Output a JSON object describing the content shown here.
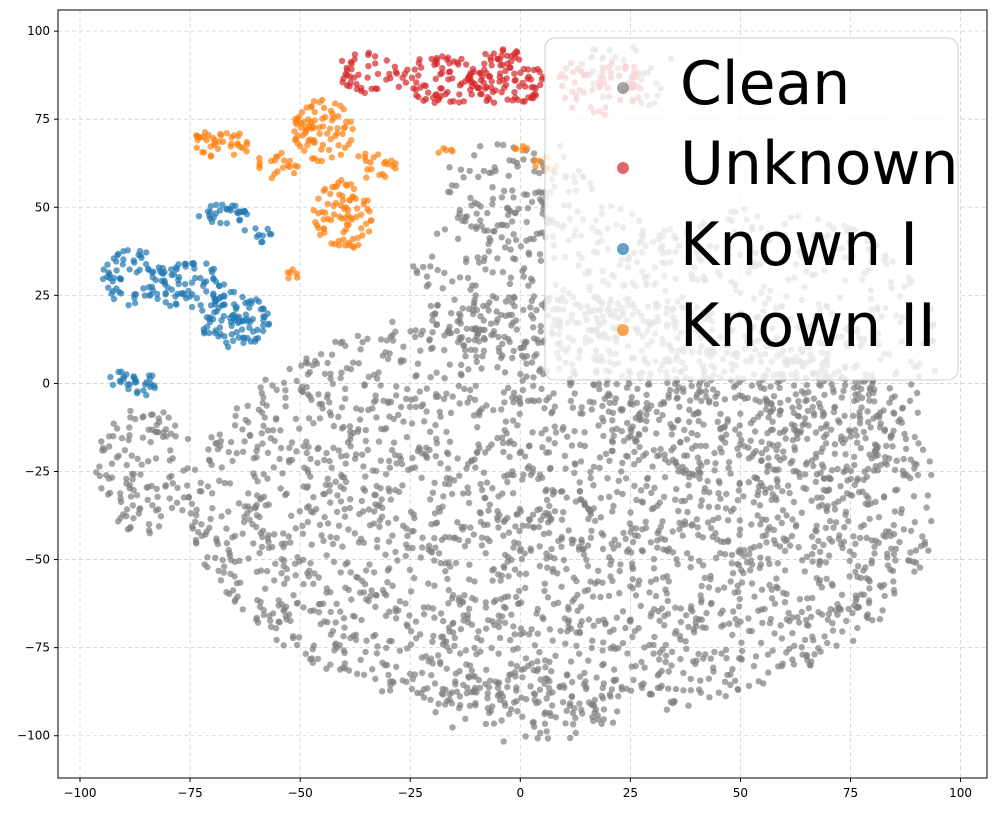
{
  "chart_data": {
    "type": "scatter",
    "title": "",
    "xlabel": "",
    "ylabel": "",
    "xlim": [
      -105,
      106
    ],
    "ylim": [
      -112,
      106
    ],
    "xticks": [
      -100,
      -75,
      -50,
      -25,
      0,
      25,
      50,
      75,
      100
    ],
    "yticks": [
      -100,
      -75,
      -50,
      -25,
      0,
      25,
      50,
      75,
      100
    ],
    "xtick_labels": [
      "−100",
      "−75",
      "−50",
      "−25",
      "0",
      "25",
      "50",
      "75",
      "100"
    ],
    "ytick_labels": [
      "−100",
      "−75",
      "−50",
      "−25",
      "0",
      "25",
      "50",
      "75",
      "100"
    ],
    "grid": true,
    "legend_position": "top-right",
    "series": [
      {
        "name": "Clean",
        "color": "#7f7f7f",
        "regions": [
          {
            "cx": 10,
            "cy": -35,
            "rx": 85,
            "ry": 60,
            "n": 2600
          },
          {
            "cx": 55,
            "cy": 10,
            "rx": 40,
            "ry": 40,
            "n": 500
          },
          {
            "cx": 5,
            "cy": 30,
            "rx": 30,
            "ry": 25,
            "n": 250
          },
          {
            "cx": 0,
            "cy": 55,
            "rx": 18,
            "ry": 15,
            "n": 90
          },
          {
            "cx": 25,
            "cy": 90,
            "rx": 12,
            "ry": 12,
            "n": 40
          },
          {
            "cx": 0,
            "cy": -90,
            "rx": 25,
            "ry": 12,
            "n": 100
          },
          {
            "cx": -85,
            "cy": -25,
            "rx": 12,
            "ry": 18,
            "n": 120
          }
        ]
      },
      {
        "name": "Unknown",
        "color": "#d62728",
        "regions": [
          {
            "cx": -35,
            "cy": 88,
            "rx": 7,
            "ry": 6,
            "n": 40
          },
          {
            "cx": -18,
            "cy": 86,
            "rx": 10,
            "ry": 7,
            "n": 80
          },
          {
            "cx": -3,
            "cy": 87,
            "rx": 9,
            "ry": 8,
            "n": 90
          },
          {
            "cx": 18,
            "cy": 85,
            "rx": 10,
            "ry": 9,
            "n": 60
          }
        ]
      },
      {
        "name": "Known I",
        "color": "#1f77b4",
        "regions": [
          {
            "cx": -88,
            "cy": 30,
            "rx": 7,
            "ry": 8,
            "n": 60
          },
          {
            "cx": -75,
            "cy": 28,
            "rx": 9,
            "ry": 7,
            "n": 70
          },
          {
            "cx": -65,
            "cy": 18,
            "rx": 8,
            "ry": 8,
            "n": 90
          },
          {
            "cx": -88,
            "cy": 0,
            "rx": 6,
            "ry": 4,
            "n": 30
          },
          {
            "cx": -68,
            "cy": 48,
            "rx": 6,
            "ry": 3,
            "n": 30
          },
          {
            "cx": -60,
            "cy": 42,
            "rx": 4,
            "ry": 3,
            "n": 10
          }
        ]
      },
      {
        "name": "Known II",
        "color": "#ff7f0e",
        "regions": [
          {
            "cx": -68,
            "cy": 68,
            "rx": 7,
            "ry": 4,
            "n": 40
          },
          {
            "cx": -55,
            "cy": 62,
            "rx": 5,
            "ry": 4,
            "n": 20
          },
          {
            "cx": -45,
            "cy": 72,
            "rx": 7,
            "ry": 9,
            "n": 80
          },
          {
            "cx": -40,
            "cy": 48,
            "rx": 7,
            "ry": 10,
            "n": 80
          },
          {
            "cx": -33,
            "cy": 62,
            "rx": 5,
            "ry": 4,
            "n": 20
          },
          {
            "cx": -17,
            "cy": 66,
            "rx": 2,
            "ry": 1,
            "n": 5
          },
          {
            "cx": -52,
            "cy": 31,
            "rx": 2,
            "ry": 2,
            "n": 6
          },
          {
            "cx": 0,
            "cy": 67,
            "rx": 2,
            "ry": 1,
            "n": 5
          },
          {
            "cx": 6,
            "cy": 63,
            "rx": 3,
            "ry": 3,
            "n": 8
          }
        ]
      }
    ]
  }
}
